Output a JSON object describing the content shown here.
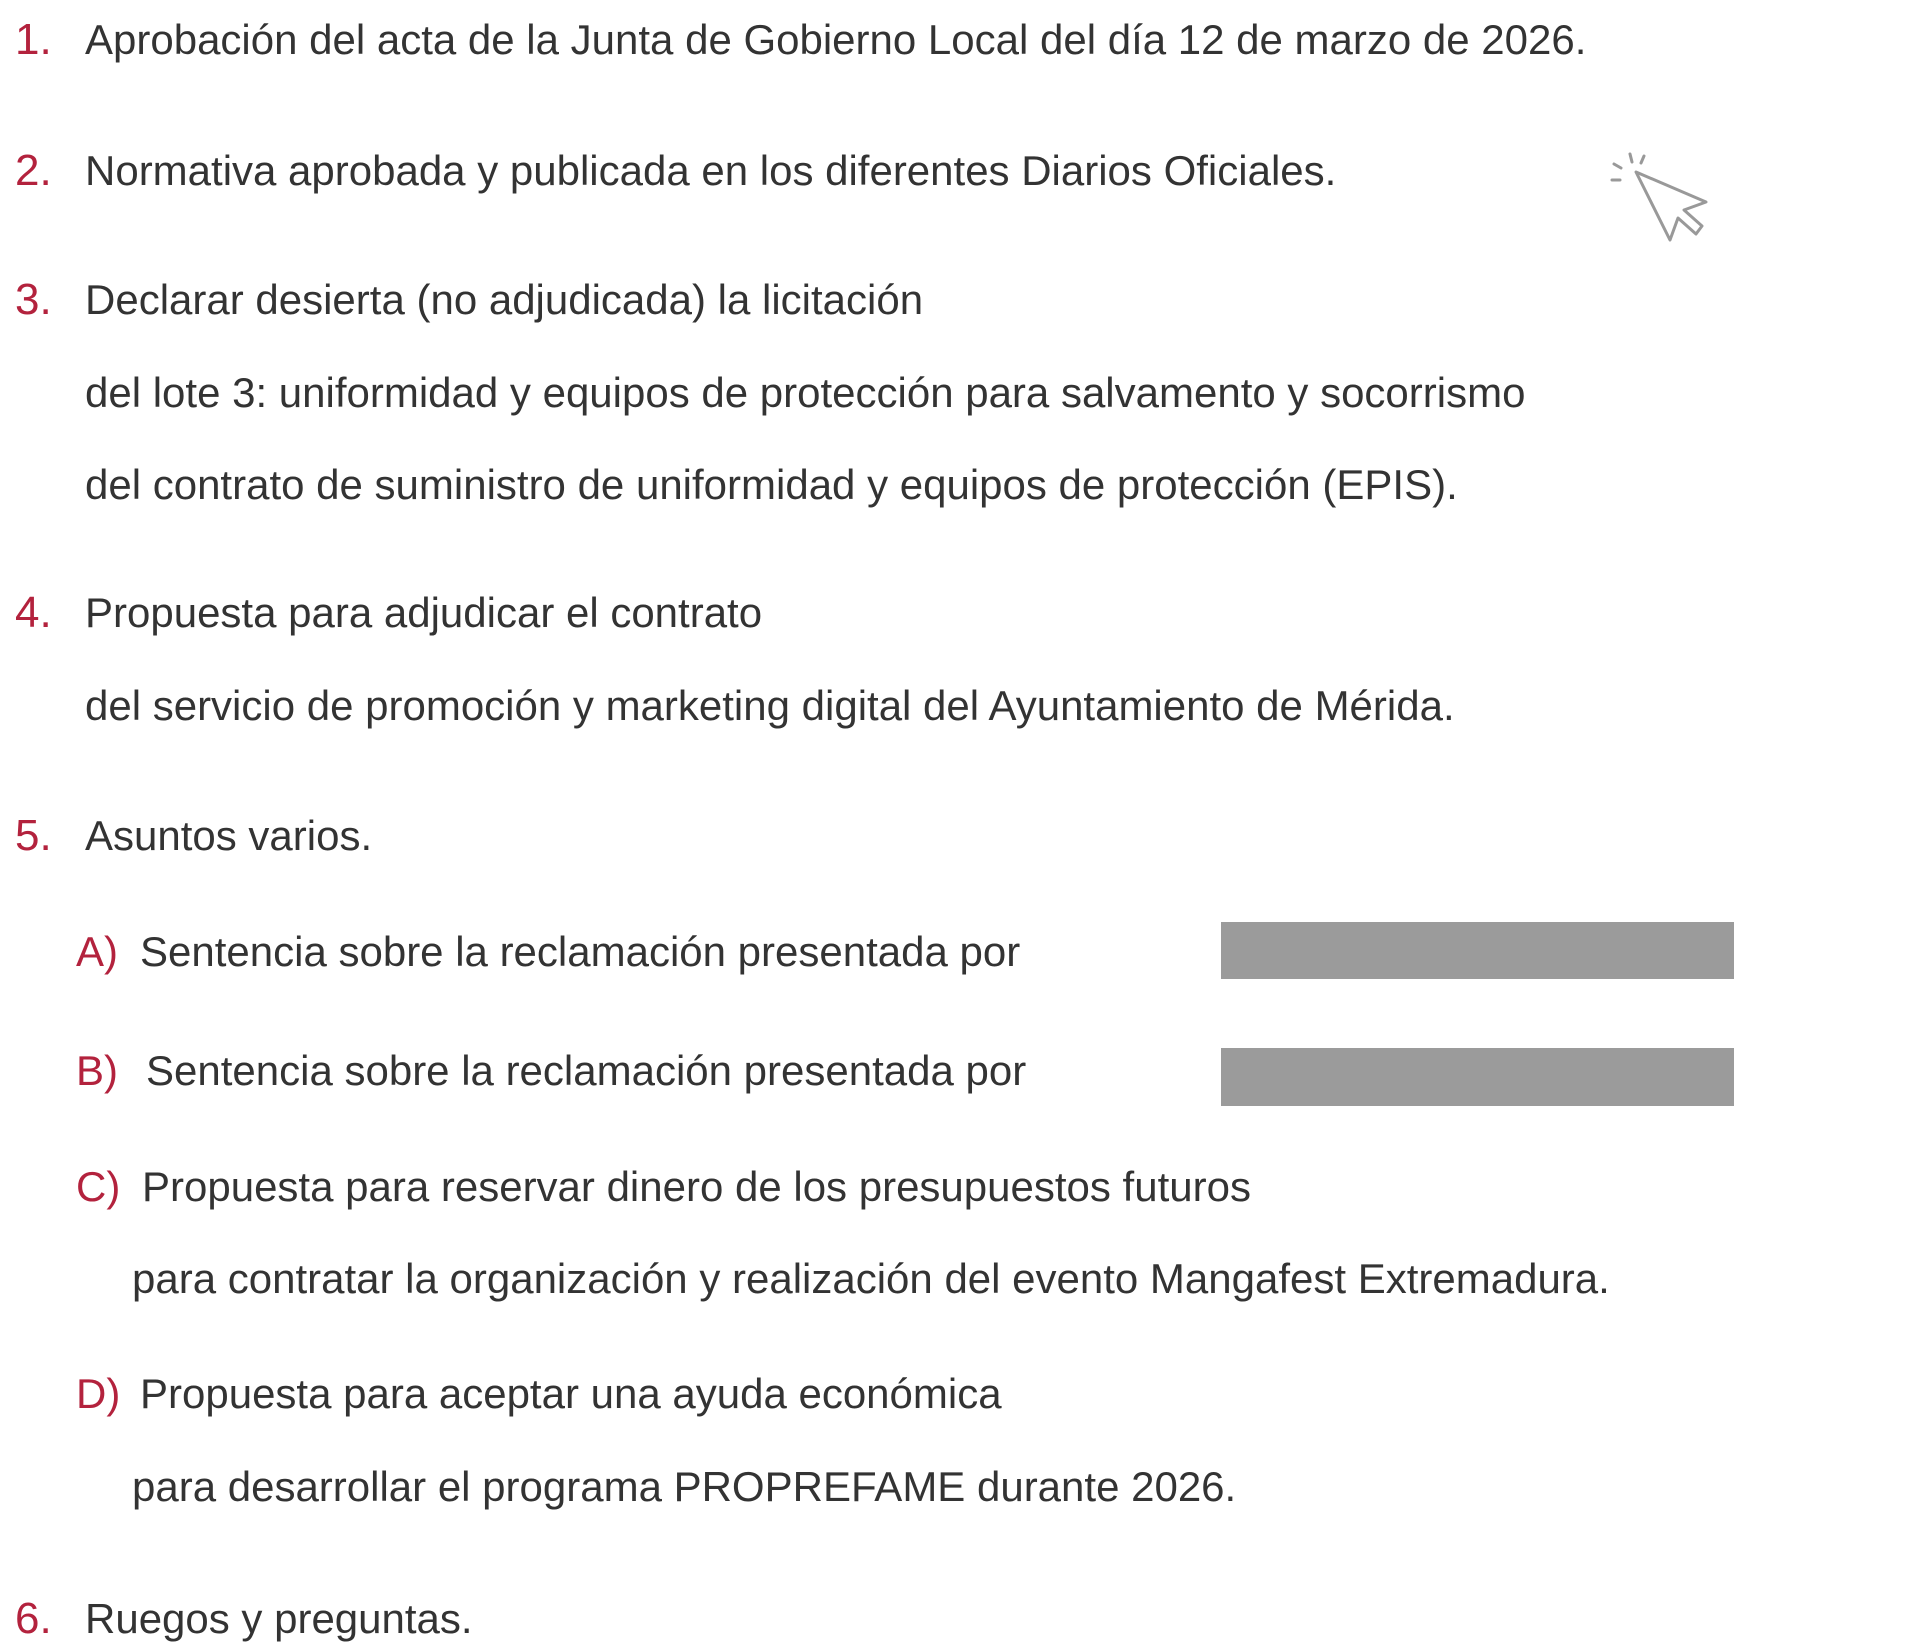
{
  "items": [
    {
      "number": "1.",
      "lines": [
        "Aprobación del acta de la Junta de Gobierno Local del día 12 de marzo de 2026."
      ]
    },
    {
      "number": "2.",
      "lines": [
        "Normativa aprobada y publicada en los diferentes Diarios Oficiales."
      ]
    },
    {
      "number": "3.",
      "lines": [
        "Declarar desierta (no adjudicada) la licitación",
        "del lote 3: uniformidad y equipos de protección para salvamento y socorrismo",
        "del contrato de suministro de uniformidad y equipos de protección (EPIS)."
      ]
    },
    {
      "number": "4.",
      "lines": [
        "Propuesta para adjudicar el contrato",
        "del servicio de promoción y marketing digital del Ayuntamiento de Mérida."
      ]
    },
    {
      "number": "5.",
      "lines": [
        "Asuntos varios."
      ],
      "subitems": [
        {
          "letter": "A)",
          "lines": [
            "Sentencia sobre la reclamación presentada por"
          ]
        },
        {
          "letter": "B)",
          "lines": [
            "Sentencia sobre la reclamación presentada por"
          ]
        },
        {
          "letter": "C)",
          "lines": [
            "Propuesta para reservar dinero de los presupuestos futuros",
            "para contratar la organización y realización del evento Mangafest Extremadura."
          ]
        },
        {
          "letter": "D)",
          "lines": [
            "Propuesta para aceptar una ayuda económica",
            "para desarrollar el programa PROPREFAME durante 2026."
          ]
        }
      ]
    },
    {
      "number": "6.",
      "lines": [
        "Ruegos y preguntas."
      ]
    }
  ]
}
